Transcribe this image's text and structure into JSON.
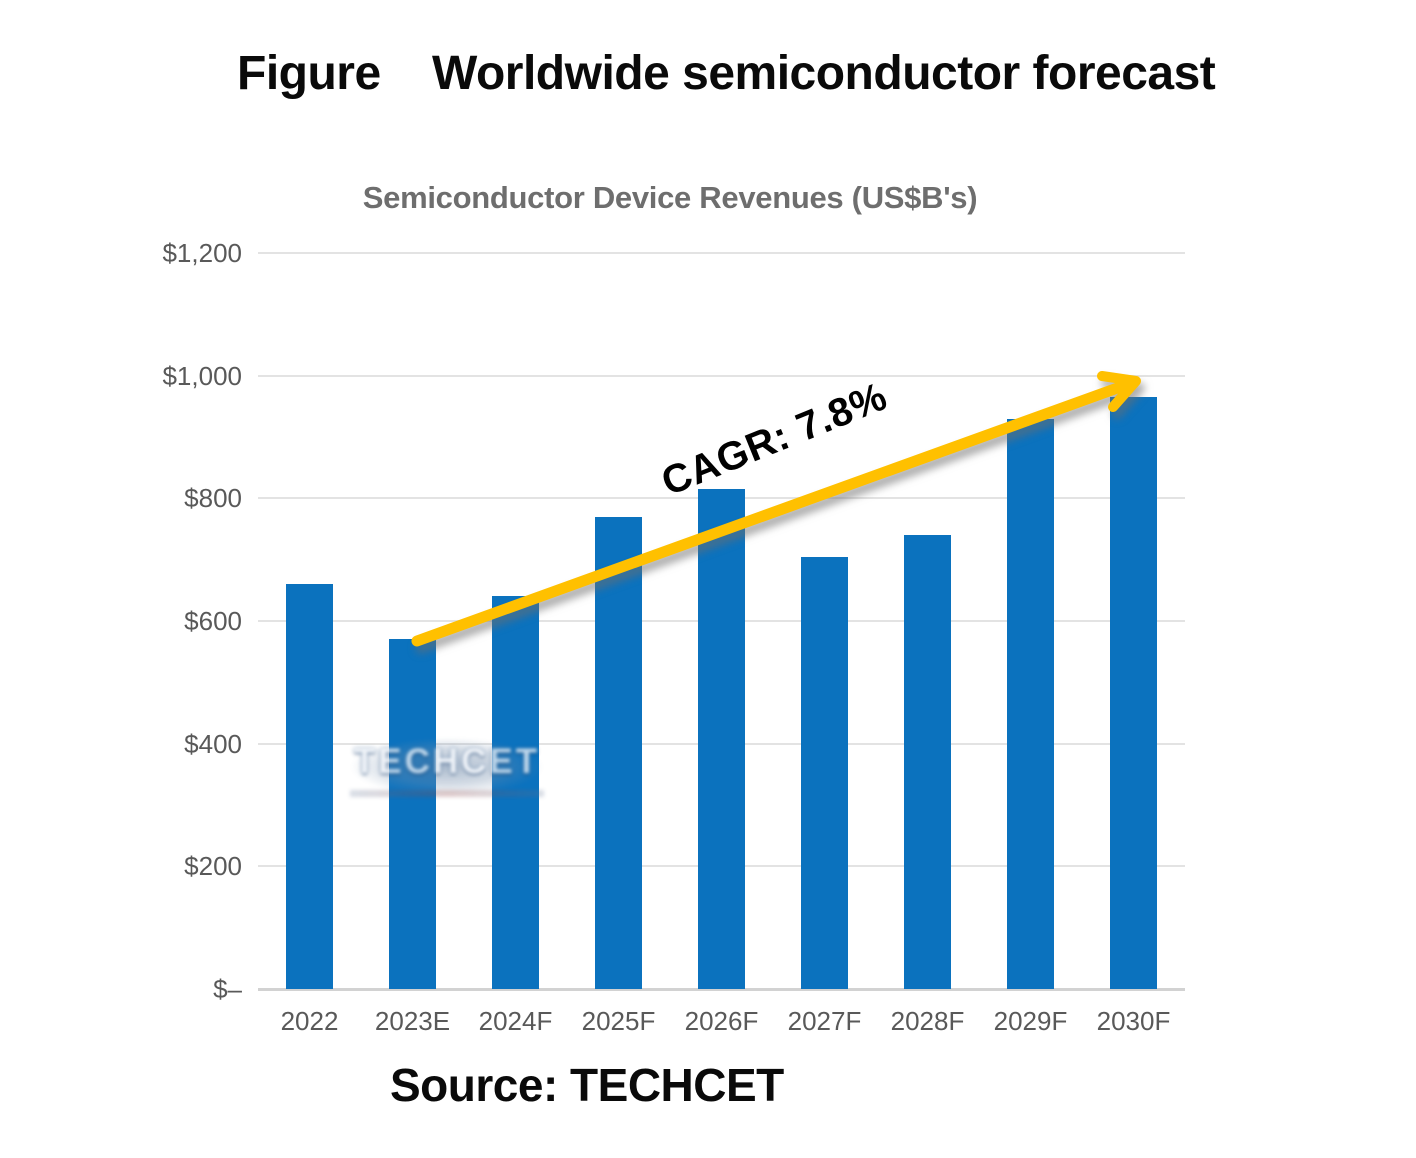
{
  "figure": {
    "title": "Figure    Worldwide semiconductor forecast",
    "source": "Source: TECHCET",
    "watermark": "TECHCET"
  },
  "chart_data": {
    "type": "bar",
    "title": "Semiconductor Device Revenues (US$B's)",
    "categories": [
      "2022",
      "2023E",
      "2024F",
      "2025F",
      "2026F",
      "2027F",
      "2028F",
      "2029F",
      "2030F"
    ],
    "values": [
      660,
      570,
      640,
      770,
      815,
      705,
      740,
      930,
      965
    ],
    "xlabel": "",
    "ylabel": "",
    "ylim": [
      0,
      1200
    ],
    "ytick_step": 200,
    "ytick_labels_bottom_to_top": [
      "$–",
      "$200",
      "$400",
      "$600",
      "$800",
      "$1,000",
      "$1,200"
    ],
    "grid": true,
    "legend": "none",
    "bar_color": "#0b72be",
    "gridline_color": "#e3e3e3",
    "axis_label_color": "#595959",
    "annotation": {
      "text": "CAGR: 7.8%",
      "color": "#000000"
    },
    "trend_arrow": {
      "color": "#ffc000",
      "from": {
        "category": "2023E",
        "value": 570
      },
      "to": {
        "category": "2030F",
        "value": 985
      }
    }
  }
}
